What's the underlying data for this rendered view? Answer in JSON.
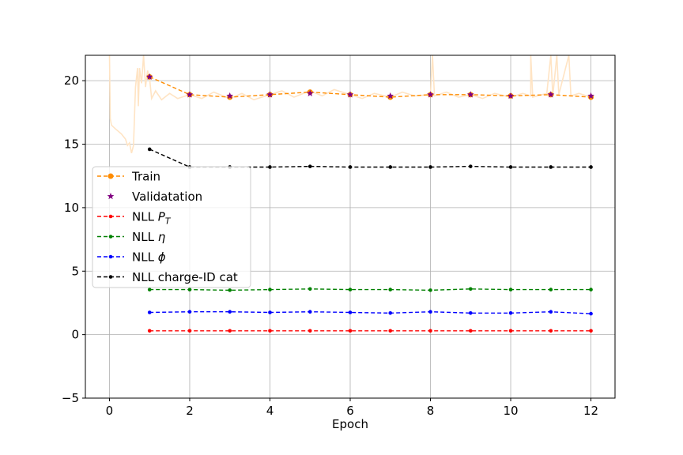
{
  "chart_data": {
    "type": "line",
    "title": "",
    "xlabel": "Epoch",
    "ylabel": "",
    "xlim": [
      -0.6,
      12.6
    ],
    "ylim": [
      -5,
      22
    ],
    "xticks": [
      0,
      2,
      4,
      6,
      8,
      10,
      12
    ],
    "yticks": [
      -5,
      0,
      5,
      10,
      15,
      20
    ],
    "tick_labels": {
      "x": [
        "0",
        "2",
        "4",
        "6",
        "8",
        "10",
        "12"
      ],
      "y": [
        "−5",
        "0",
        "5",
        "10",
        "15",
        "20"
      ]
    },
    "grid": true,
    "legend_position": "center-left",
    "epochs": [
      1,
      2,
      3,
      4,
      5,
      6,
      7,
      8,
      9,
      10,
      11,
      12
    ],
    "series": [
      {
        "name": "Train",
        "color": "#ff8c00",
        "style": "dashed",
        "marker": "circle",
        "values": [
          20.3,
          18.9,
          18.7,
          18.9,
          19.1,
          18.9,
          18.7,
          18.9,
          18.9,
          18.8,
          18.9,
          18.7
        ]
      },
      {
        "name": "Validatation",
        "color": "#800080",
        "style": "none",
        "marker": "star",
        "values": [
          20.3,
          18.9,
          18.8,
          18.9,
          19.0,
          18.9,
          18.8,
          18.9,
          18.9,
          18.8,
          18.9,
          18.8
        ]
      },
      {
        "name": "NLL",
        "name_math": "P_T",
        "color": "#ff0000",
        "style": "dashed",
        "marker": "dot",
        "values": [
          0.3,
          0.3,
          0.3,
          0.3,
          0.3,
          0.3,
          0.3,
          0.3,
          0.3,
          0.3,
          0.3,
          0.3
        ]
      },
      {
        "name": "NLL",
        "name_math": "η",
        "color": "#008000",
        "style": "dashed",
        "marker": "dot",
        "values": [
          3.55,
          3.55,
          3.5,
          3.55,
          3.6,
          3.55,
          3.55,
          3.5,
          3.6,
          3.55,
          3.55,
          3.55
        ]
      },
      {
        "name": "NLL",
        "name_math": "ϕ",
        "color": "#0000ff",
        "style": "dashed",
        "marker": "dot",
        "values": [
          1.75,
          1.8,
          1.8,
          1.75,
          1.8,
          1.75,
          1.7,
          1.8,
          1.7,
          1.7,
          1.8,
          1.65
        ]
      },
      {
        "name": "NLL charge-ID cat",
        "color": "#000000",
        "style": "dashed",
        "marker": "dot",
        "values": [
          14.6,
          13.2,
          13.2,
          13.2,
          13.25,
          13.2,
          13.2,
          13.2,
          13.25,
          13.2,
          13.2,
          13.2
        ]
      }
    ],
    "train_batch_trace": {
      "color": "#ffe4c4",
      "description_points": [
        [
          0.0,
          22.0
        ],
        [
          0.02,
          17.0
        ],
        [
          0.05,
          16.5
        ],
        [
          0.15,
          16.2
        ],
        [
          0.3,
          15.8
        ],
        [
          0.4,
          15.4
        ],
        [
          0.45,
          14.9
        ],
        [
          0.5,
          15.1
        ],
        [
          0.55,
          14.3
        ],
        [
          0.6,
          14.9
        ],
        [
          0.65,
          19.5
        ],
        [
          0.7,
          21.0
        ],
        [
          0.72,
          18.0
        ],
        [
          0.75,
          21.0
        ],
        [
          0.8,
          19.8
        ],
        [
          0.85,
          22.0
        ],
        [
          0.9,
          19.5
        ],
        [
          0.95,
          20.8
        ],
        [
          1.0,
          20.2
        ],
        [
          1.05,
          18.6
        ],
        [
          1.15,
          19.2
        ],
        [
          1.3,
          18.5
        ],
        [
          1.5,
          19.0
        ],
        [
          1.7,
          18.6
        ],
        [
          2.0,
          18.9
        ],
        [
          2.3,
          18.6
        ],
        [
          2.6,
          19.1
        ],
        [
          3.0,
          18.6
        ],
        [
          3.3,
          19.0
        ],
        [
          3.6,
          18.5
        ],
        [
          4.0,
          18.9
        ],
        [
          4.3,
          19.2
        ],
        [
          4.6,
          18.7
        ],
        [
          5.0,
          19.2
        ],
        [
          5.3,
          18.8
        ],
        [
          5.6,
          19.3
        ],
        [
          6.0,
          18.9
        ],
        [
          6.3,
          18.6
        ],
        [
          6.6,
          19.0
        ],
        [
          7.0,
          18.7
        ],
        [
          7.3,
          19.1
        ],
        [
          7.6,
          18.8
        ],
        [
          8.0,
          18.9
        ],
        [
          8.05,
          22.0
        ],
        [
          8.1,
          18.8
        ],
        [
          8.4,
          19.1
        ],
        [
          8.7,
          18.7
        ],
        [
          9.0,
          18.9
        ],
        [
          9.3,
          18.6
        ],
        [
          9.6,
          19.0
        ],
        [
          10.0,
          18.7
        ],
        [
          10.3,
          19.0
        ],
        [
          10.5,
          18.8
        ],
        [
          10.5,
          22.0
        ],
        [
          10.55,
          18.7
        ],
        [
          10.9,
          19.0
        ],
        [
          11.0,
          22.0
        ],
        [
          11.05,
          18.8
        ],
        [
          11.15,
          22.0
        ],
        [
          11.2,
          18.9
        ],
        [
          11.45,
          22.0
        ],
        [
          11.5,
          18.8
        ],
        [
          11.7,
          19.0
        ],
        [
          12.0,
          18.7
        ]
      ]
    }
  }
}
